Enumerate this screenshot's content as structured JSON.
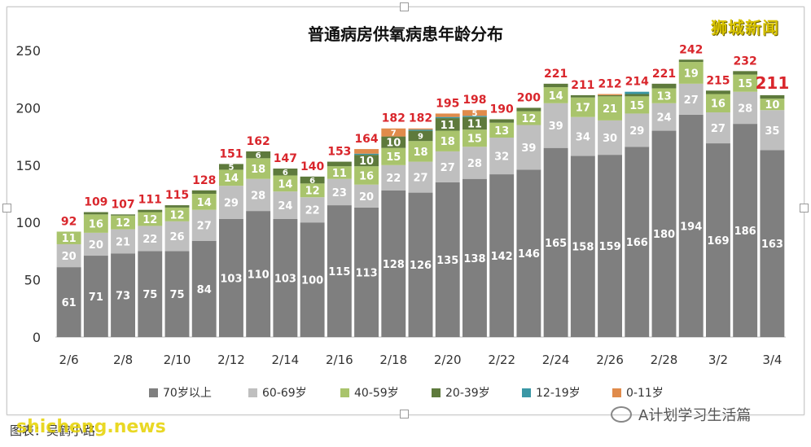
{
  "header": {
    "brand": "狮城新闻"
  },
  "footer": {
    "caption": "图表：吴鹤小路",
    "watermark": "shicheng.news",
    "wechat_label": "A计划学习生活篇"
  },
  "colors": {
    "70岁以上": "#7f7f7f",
    "60-69岁": "#bfbfbf",
    "40-59岁": "#a9c46c",
    "20-39岁": "#5e7a3c",
    "12-19岁": "#3a97a5",
    "0-11岁": "#e08b4b",
    "total_label": "#d9262c"
  },
  "chart_data": {
    "type": "bar",
    "stacked": true,
    "title": "普通病房供氧病患年龄分布",
    "xlabel": "",
    "ylabel": "",
    "ylim": [
      0,
      250
    ],
    "yticks": [
      0,
      50,
      100,
      150,
      200,
      250
    ],
    "grid": false,
    "legend_position": "bottom",
    "categories": [
      "2/6",
      "2/7",
      "2/8",
      "2/9",
      "2/10",
      "2/11",
      "2/12",
      "2/13",
      "2/14",
      "2/15",
      "2/16",
      "2/17",
      "2/18",
      "2/19",
      "2/20",
      "2/21",
      "2/22",
      "2/23",
      "2/24",
      "2/25",
      "2/26",
      "2/27",
      "2/28",
      "3/1",
      "3/2",
      "3/3",
      "3/4"
    ],
    "xtick_labels": [
      "2/6",
      "",
      "2/8",
      "",
      "2/10",
      "",
      "2/12",
      "",
      "2/14",
      "",
      "2/16",
      "",
      "2/18",
      "",
      "2/20",
      "",
      "2/22",
      "",
      "2/24",
      "",
      "2/26",
      "",
      "2/28",
      "",
      "3/2",
      "",
      "3/4"
    ],
    "series": [
      {
        "name": "70岁以上",
        "values": [
          61,
          71,
          73,
          75,
          75,
          84,
          103,
          110,
          103,
          100,
          115,
          113,
          128,
          126,
          135,
          138,
          142,
          146,
          165,
          158,
          159,
          166,
          180,
          194,
          169,
          186,
          163
        ]
      },
      {
        "name": "60-69岁",
        "values": [
          20,
          20,
          21,
          22,
          26,
          27,
          29,
          28,
          24,
          22,
          23,
          20,
          22,
          27,
          27,
          28,
          32,
          39,
          39,
          34,
          30,
          29,
          24,
          27,
          27,
          28,
          35
        ]
      },
      {
        "name": "40-59岁",
        "values": [
          11,
          16,
          12,
          12,
          12,
          14,
          14,
          18,
          14,
          12,
          11,
          16,
          15,
          18,
          18,
          15,
          13,
          12,
          14,
          17,
          21,
          15,
          13,
          19,
          16,
          15,
          10
        ]
      },
      {
        "name": "20-39岁",
        "values": [
          0,
          2,
          1,
          2,
          2,
          3,
          5,
          6,
          6,
          6,
          4,
          10,
          10,
          9,
          11,
          11,
          3,
          3,
          3,
          2,
          1,
          2,
          4,
          2,
          3,
          3,
          3
        ]
      },
      {
        "name": "12-19岁",
        "values": [
          0,
          0,
          0,
          0,
          0,
          0,
          0,
          0,
          0,
          0,
          0,
          1,
          0,
          1,
          1,
          1,
          0,
          0,
          0,
          0,
          0,
          2,
          0,
          0,
          0,
          0,
          0
        ]
      },
      {
        "name": "0-11岁",
        "values": [
          0,
          0,
          0,
          0,
          0,
          0,
          0,
          0,
          0,
          0,
          0,
          4,
          7,
          1,
          3,
          5,
          0,
          0,
          0,
          0,
          1,
          0,
          0,
          0,
          0,
          0,
          0
        ]
      }
    ],
    "segment_labels": [
      [
        "61",
        "71",
        "73",
        "75",
        "75",
        "84",
        "103",
        "110",
        "103",
        "100",
        "115",
        "113",
        "128",
        "126",
        "135",
        "138",
        "142",
        "146",
        "165",
        "158",
        "159",
        "166",
        "180",
        "194",
        "169",
        "186",
        "163"
      ],
      [
        "20",
        "20",
        "21",
        "22",
        "26",
        "27",
        "29",
        "28",
        "24",
        "22",
        "23",
        "20",
        "22",
        "27",
        "27",
        "28",
        "32",
        "39",
        "39",
        "34",
        "30",
        "29",
        "24",
        "27",
        "27",
        "28",
        "35"
      ],
      [
        "11",
        "16",
        "12",
        "12",
        "12",
        "14",
        "14",
        "18",
        "14",
        "12",
        "11",
        "16",
        "15",
        "18",
        "18",
        "15",
        "13",
        "12",
        "14",
        "17",
        "21",
        "15",
        "13",
        "19",
        "16",
        "15",
        "10"
      ],
      [
        "",
        "2",
        "1",
        "2",
        "2",
        "3",
        "5",
        "6",
        "6",
        "6",
        "4",
        "10",
        "10",
        "9",
        "11",
        "11",
        "3",
        "3",
        "3",
        "2",
        "1",
        "2",
        "4",
        "2",
        "3",
        "3",
        "3"
      ],
      [
        "",
        "",
        "",
        "",
        "",
        "",
        "",
        "",
        "",
        "",
        "",
        "1",
        "",
        "1",
        "1",
        "1",
        "",
        "",
        "",
        "",
        "",
        "2",
        "",
        "",
        "",
        "",
        ""
      ],
      [
        "",
        "",
        "",
        "",
        "",
        "",
        "",
        "",
        "",
        "",
        "",
        "4",
        "7",
        "1",
        "3",
        "5",
        "",
        "",
        "",
        "",
        "1",
        "",
        "",
        "",
        "",
        "",
        ""
      ]
    ],
    "totals": [
      92,
      109,
      107,
      111,
      115,
      128,
      151,
      162,
      147,
      140,
      153,
      164,
      182,
      182,
      195,
      198,
      190,
      200,
      221,
      211,
      212,
      214,
      221,
      242,
      215,
      232,
      211
    ]
  }
}
